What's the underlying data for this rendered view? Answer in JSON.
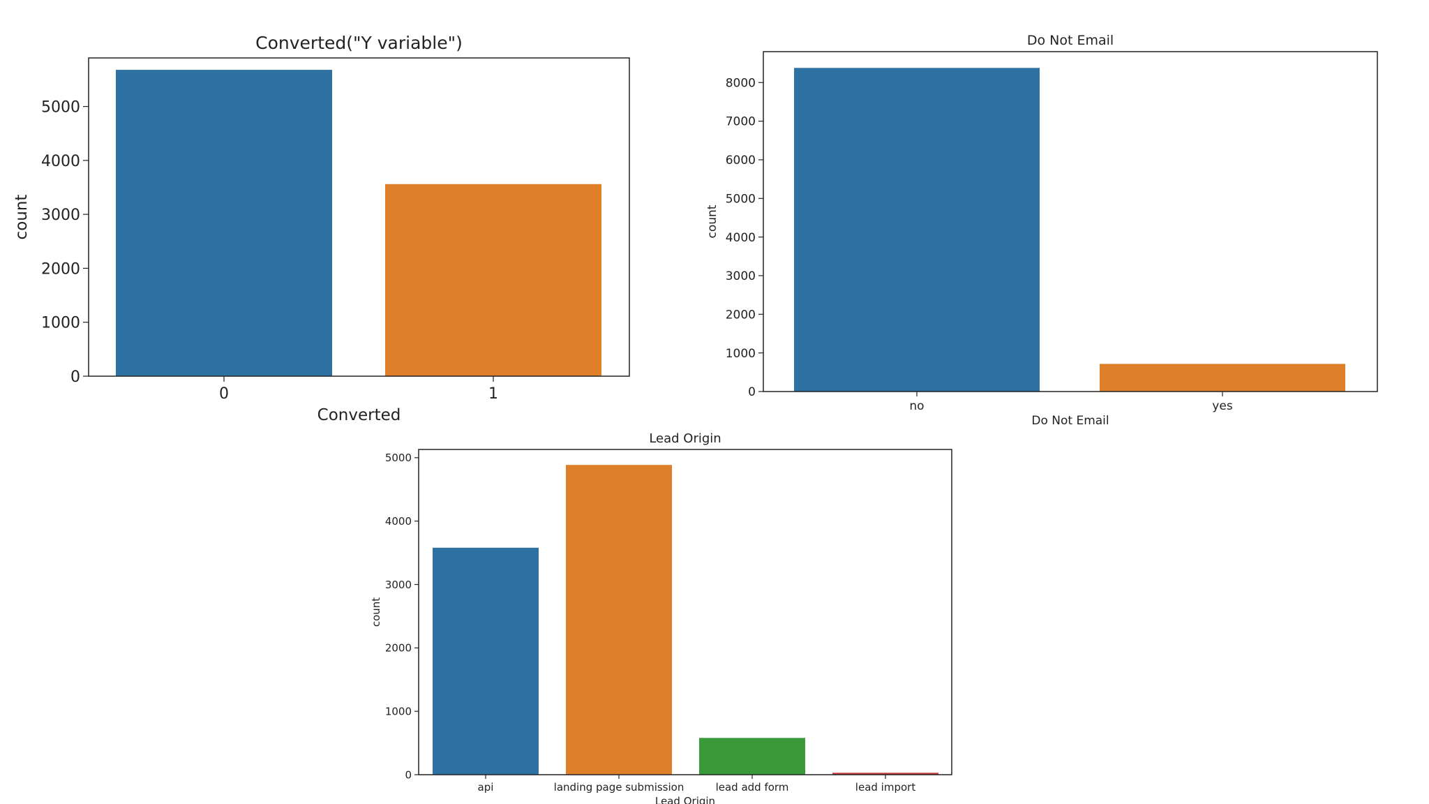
{
  "chart_data": [
    {
      "type": "bar",
      "title": "Converted(\"Y variable\")",
      "xlabel": "Converted",
      "ylabel": "count",
      "categories": [
        "0",
        "1"
      ],
      "values": [
        5679,
        3561
      ],
      "colors": [
        "#2e72a3",
        "#e07f2a"
      ],
      "ylim": [
        0,
        5900
      ],
      "yticks": [
        0,
        1000,
        2000,
        3000,
        4000,
        5000
      ],
      "grid": false
    },
    {
      "type": "bar",
      "title": "Do Not Email",
      "xlabel": "Do Not Email",
      "ylabel": "count",
      "categories": [
        "no",
        "yes"
      ],
      "values": [
        8379,
        716
      ],
      "colors": [
        "#2e72a3",
        "#e07f2a"
      ],
      "ylim": [
        0,
        8800
      ],
      "yticks": [
        0,
        1000,
        2000,
        3000,
        4000,
        5000,
        6000,
        7000,
        8000
      ],
      "grid": false
    },
    {
      "type": "bar",
      "title": "Lead Origin",
      "xlabel": "Lead Origin",
      "ylabel": "count",
      "categories": [
        "api",
        "landing page submission",
        "lead add form",
        "lead import"
      ],
      "values": [
        3580,
        4886,
        580,
        30
      ],
      "colors": [
        "#2e72a3",
        "#e07f2a",
        "#3a9a3a",
        "#c83a3a"
      ],
      "ylim": [
        0,
        5130
      ],
      "yticks": [
        0,
        1000,
        2000,
        3000,
        4000,
        5000
      ],
      "grid": false
    }
  ]
}
